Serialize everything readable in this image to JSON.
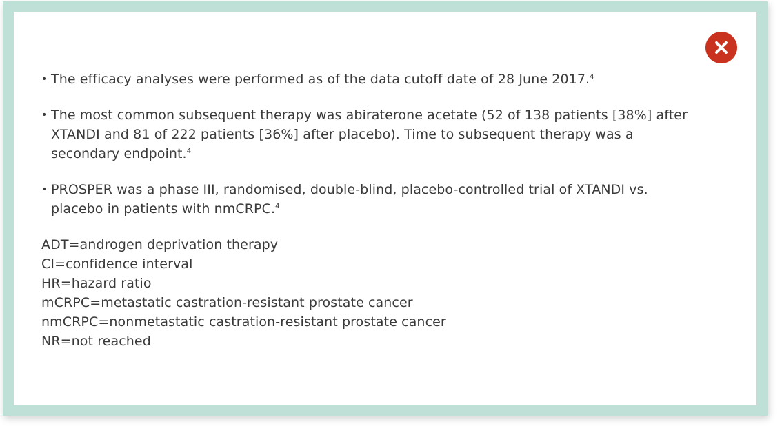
{
  "close_icon": "close-icon",
  "colors": {
    "frame": "#bfe0d6",
    "close_button": "#c8321f",
    "text": "#3a3a3a"
  },
  "bullets": [
    {
      "text": "The efficacy analyses were performed as of the data cutoff date of 28 June 2017.",
      "ref": "4"
    },
    {
      "text": "The most common subsequent therapy was abiraterone acetate (52 of 138 patients [38%] after XTANDI and 81 of 222 patients [36%] after placebo). Time to subsequent therapy was a secondary endpoint.",
      "ref": "4"
    },
    {
      "text": "PROSPER was a phase III, randomised, double-blind, placebo-controlled trial of XTANDI vs. placebo in patients with nmCRPC.",
      "ref": "4"
    }
  ],
  "abbreviations": [
    "ADT=androgen deprivation therapy",
    "CI=confidence interval",
    "HR=hazard ratio",
    "mCRPC=metastatic castration-resistant prostate cancer",
    "nmCRPC=nonmetastatic castration-resistant prostate cancer",
    "NR=not reached"
  ]
}
